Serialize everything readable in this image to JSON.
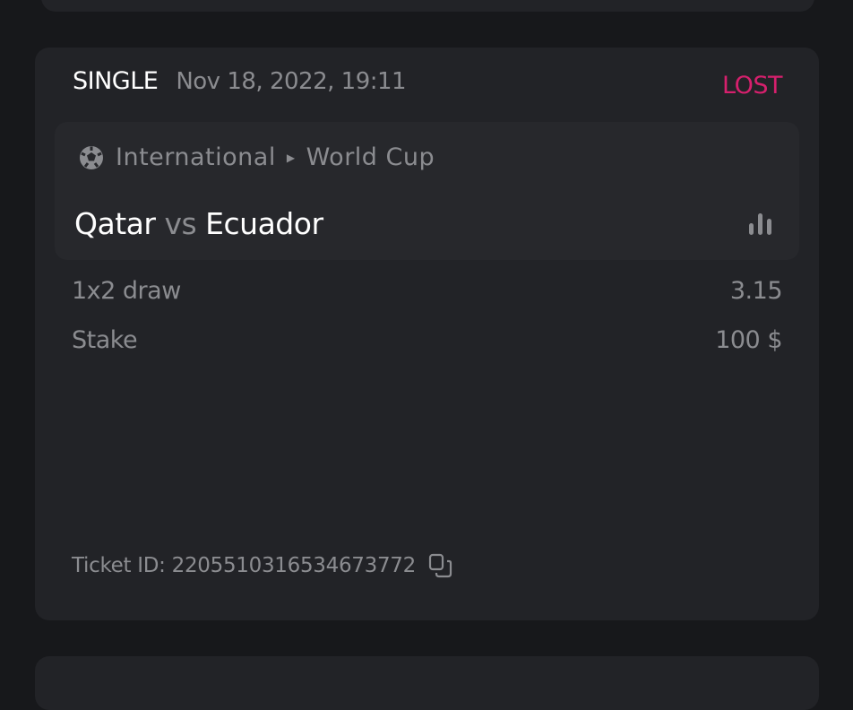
{
  "bet": {
    "type": "SINGLE",
    "date": "Nov 18, 2022, 19:11",
    "status": "LOST",
    "status_color": "#d6206d",
    "event": {
      "sport_icon": "soccer-ball-icon",
      "category": "International",
      "league": "World Cup",
      "home": "Qatar",
      "vs": "vs",
      "away": "Ecuador",
      "stats_icon": "bar-chart-icon"
    },
    "market": "1x2 draw",
    "odds": "3.15",
    "stake_label": "Stake",
    "stake": "100 $",
    "ticket_label": "Ticket ID:",
    "ticket_id": "2205510316534673772",
    "copy_icon": "copy-icon"
  }
}
